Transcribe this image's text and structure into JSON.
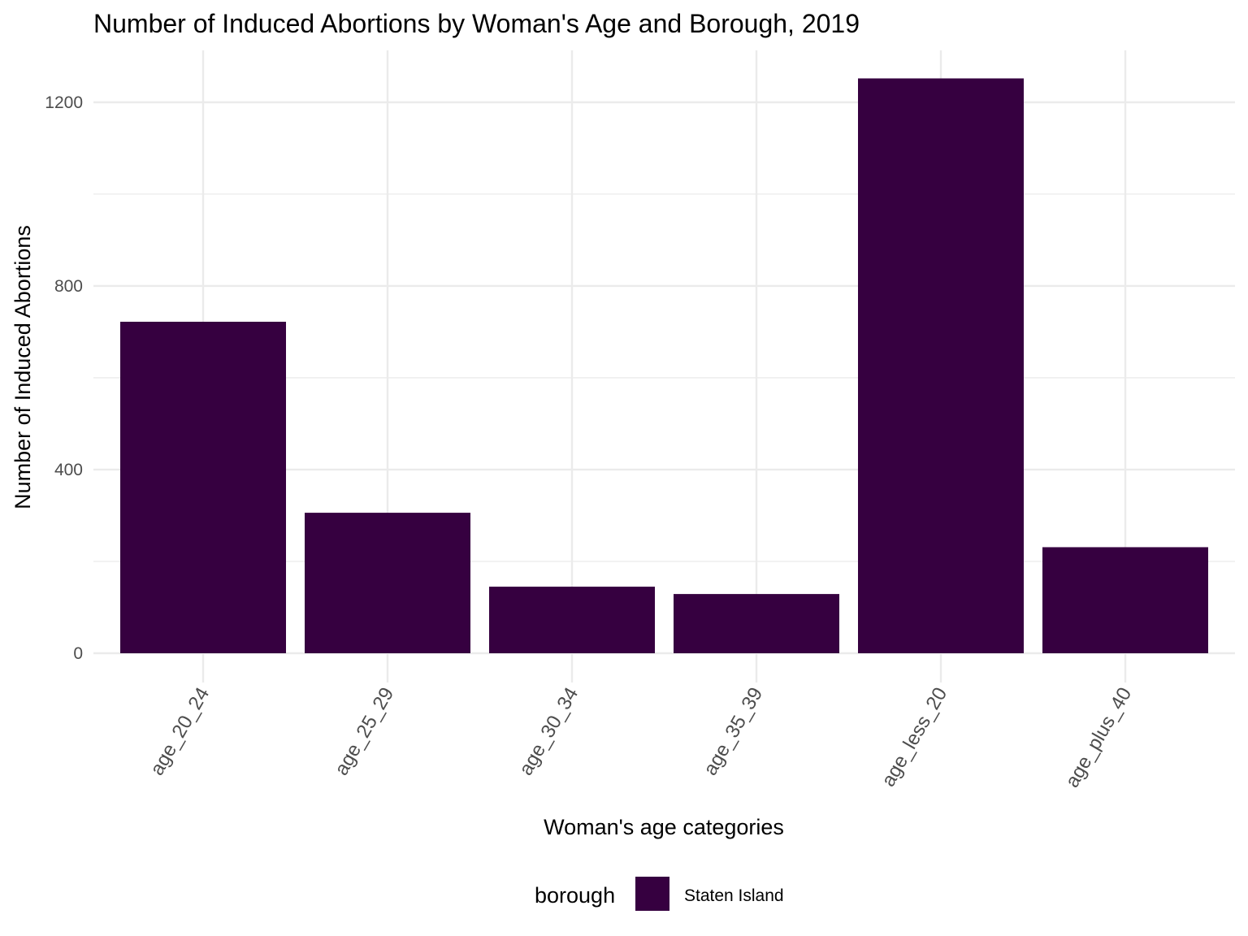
{
  "chart_data": {
    "type": "bar",
    "title": "Number of Induced Abortions by Woman's Age and Borough, 2019",
    "xlabel": "Woman's age categories",
    "ylabel": "Number of Induced Abortions",
    "categories": [
      "age_20_24",
      "age_25_29",
      "age_30_34",
      "age_35_39",
      "age_less_20",
      "age_plus_40"
    ],
    "series": [
      {
        "name": "Staten Island",
        "values": [
          722,
          306,
          145,
          129,
          1252,
          231
        ],
        "color": "#360040"
      }
    ],
    "ylim": [
      0,
      1300
    ],
    "yticks": [
      0,
      400,
      800,
      1200
    ],
    "ytick_labels": [
      "0",
      "400",
      "800",
      "1200"
    ],
    "grid": true,
    "legend": {
      "title": "borough",
      "position": "bottom",
      "entries": [
        "Staten Island"
      ]
    }
  }
}
